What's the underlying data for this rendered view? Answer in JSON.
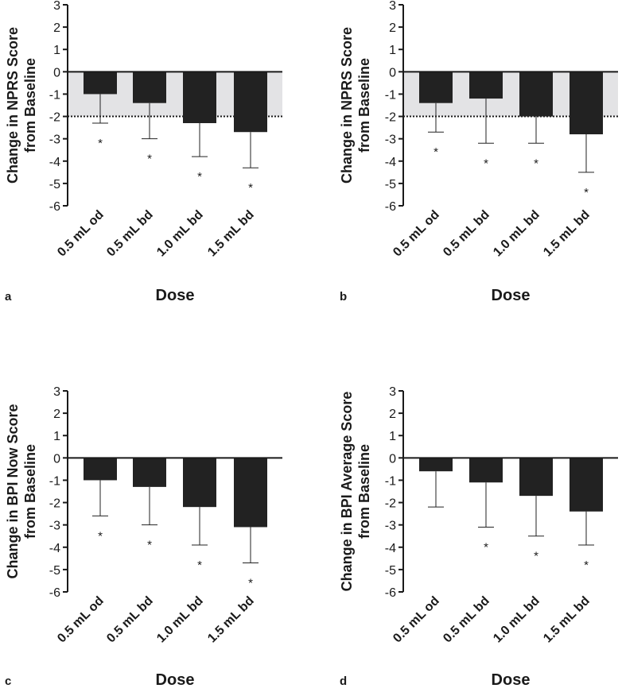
{
  "chart_data": [
    {
      "panel_label": "a",
      "type": "bar",
      "categories": [
        "0.5 mL od",
        "0.5 mL bd",
        "1.0 mL bd",
        "1.5 mL bd"
      ],
      "values": [
        -1.0,
        -1.4,
        -2.3,
        -2.7
      ],
      "error_lower": [
        -2.3,
        -3.0,
        -3.8,
        -4.3
      ],
      "significance": [
        "*",
        "*",
        "*",
        "*"
      ],
      "xlabel": "Dose",
      "ylabel": "Change in NPRS Score from Baseline",
      "ylim": [
        -6,
        3
      ],
      "yticks": [
        3,
        2,
        1,
        0,
        -1,
        -2,
        -3,
        -4,
        -5,
        -6
      ],
      "reference_band": [
        -2,
        0
      ],
      "reference_line": -2
    },
    {
      "panel_label": "b",
      "type": "bar",
      "categories": [
        "0.5 mL od",
        "0.5 mL bd",
        "1.0 mL bd",
        "1.5 mL bd"
      ],
      "values": [
        -1.4,
        -1.2,
        -2.0,
        -2.8
      ],
      "error_lower": [
        -2.7,
        -3.2,
        -3.2,
        -4.5
      ],
      "significance": [
        "*",
        "*",
        "*",
        "*"
      ],
      "xlabel": "Dose",
      "ylabel": "Change in NPRS Score from Baseline",
      "ylim": [
        -6,
        3
      ],
      "yticks": [
        3,
        2,
        1,
        0,
        -1,
        -2,
        -3,
        -4,
        -5,
        -6
      ],
      "reference_band": [
        -2,
        0
      ],
      "reference_line": -2
    },
    {
      "panel_label": "c",
      "type": "bar",
      "categories": [
        "0.5 mL od",
        "0.5 mL bd",
        "1.0 mL bd",
        "1.5 mL bd"
      ],
      "values": [
        -1.0,
        -1.3,
        -2.2,
        -3.1
      ],
      "error_lower": [
        -2.6,
        -3.0,
        -3.9,
        -4.7
      ],
      "significance": [
        "*",
        "*",
        "*",
        "*"
      ],
      "xlabel": "Dose",
      "ylabel": "Change in BPI Now Score from Baseline",
      "ylim": [
        -6,
        3
      ],
      "yticks": [
        3,
        2,
        1,
        0,
        -1,
        -2,
        -3,
        -4,
        -5,
        -6
      ]
    },
    {
      "panel_label": "d",
      "type": "bar",
      "categories": [
        "0.5 mL od",
        "0.5 mL bd",
        "1.0 mL bd",
        "1.5 mL bd"
      ],
      "values": [
        -0.6,
        -1.1,
        -1.7,
        -2.4
      ],
      "error_lower": [
        -2.2,
        -3.1,
        -3.5,
        -3.9
      ],
      "significance": [
        "",
        "*",
        "*",
        "*"
      ],
      "xlabel": "Dose",
      "ylabel": "Change in BPI Average Score from Baseline",
      "ylim": [
        -6,
        3
      ],
      "yticks": [
        3,
        2,
        1,
        0,
        -1,
        -2,
        -3,
        -4,
        -5,
        -6
      ]
    }
  ]
}
